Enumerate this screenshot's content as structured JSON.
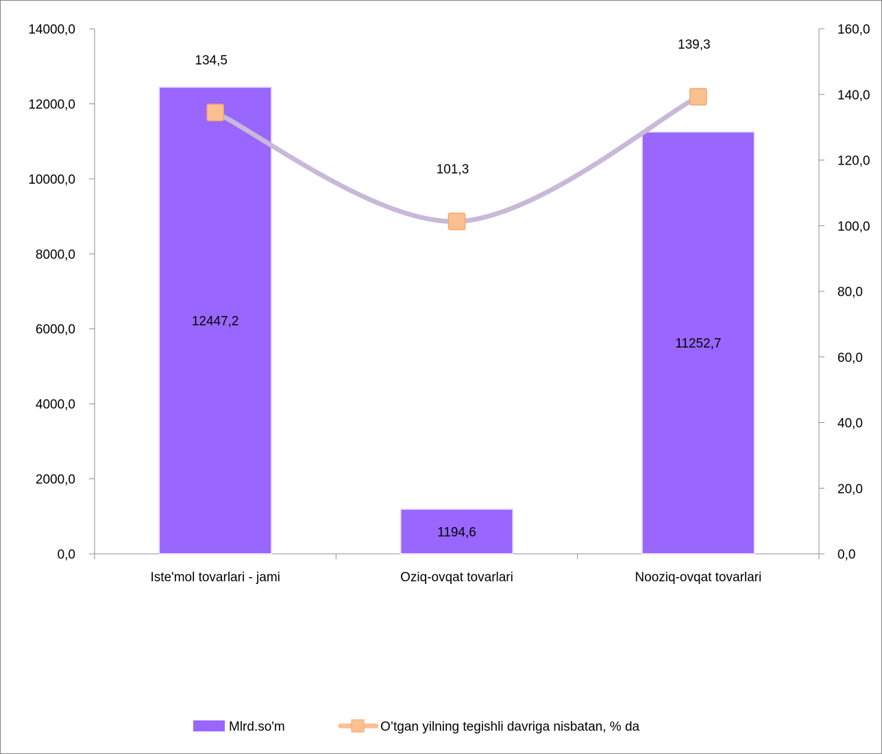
{
  "chart_data": {
    "type": "bar",
    "title": "",
    "categories": [
      "Iste'mol tovarlari - jami",
      "Oziq-ovqat tovarlari",
      "Nooziq-ovqat tovarlari"
    ],
    "series": [
      {
        "name": "Mlrd.so'm",
        "type": "bar",
        "axis": "left",
        "values": [
          12447.2,
          1194.6,
          11252.7
        ],
        "labels": [
          "12447,2",
          "1194,6",
          "11252,7"
        ],
        "color": "#9966ff"
      },
      {
        "name": "O’tgan yilning tegishli davriga nisbatan, % da",
        "type": "line",
        "axis": "right",
        "smooth": true,
        "marker": "square",
        "values": [
          134.5,
          101.3,
          139.3
        ],
        "labels": [
          "134,5",
          "101,3",
          "139,3"
        ],
        "color": "#c9b8d8",
        "marker_color": "#fac090"
      }
    ],
    "y_left": {
      "min": 0,
      "max": 14000,
      "step": 2000,
      "tick_labels": [
        "0,0",
        "2000,0",
        "4000,0",
        "6000,0",
        "8000,0",
        "10000,0",
        "12000,0",
        "14000,0"
      ]
    },
    "y_right": {
      "min": 0,
      "max": 160,
      "step": 20,
      "tick_labels": [
        "0,0",
        "20,0",
        "40,0",
        "60,0",
        "80,0",
        "100,0",
        "120,0",
        "140,0",
        "160,0"
      ]
    },
    "grid": false,
    "legend": "bottom"
  }
}
